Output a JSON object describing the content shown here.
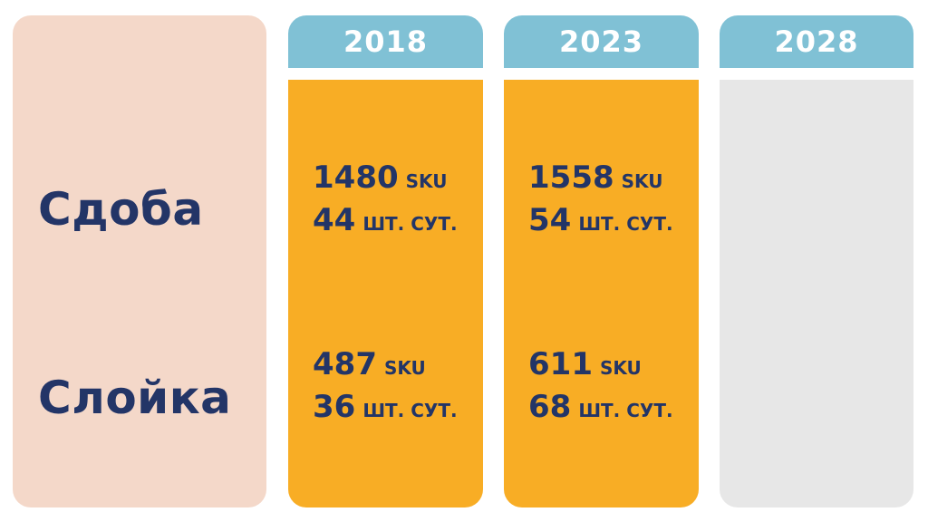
{
  "rows": [
    {
      "label": "Сдоба"
    },
    {
      "label": "Слойка"
    }
  ],
  "columns": [
    {
      "year": "2018",
      "cells": [
        {
          "sku": "1480",
          "sku_unit": "SKU",
          "daily": "44",
          "daily_unit": "ШТ. СУТ."
        },
        {
          "sku": "487",
          "sku_unit": "SKU",
          "daily": "36",
          "daily_unit": "ШТ. СУТ."
        }
      ]
    },
    {
      "year": "2023",
      "cells": [
        {
          "sku": "1558",
          "sku_unit": "SKU",
          "daily": "54",
          "daily_unit": "ШТ. СУТ."
        },
        {
          "sku": "611",
          "sku_unit": "SKU",
          "daily": "68",
          "daily_unit": "ШТ. СУТ."
        }
      ]
    },
    {
      "year": "2028",
      "cells": []
    }
  ],
  "colors": {
    "label_panel": "#f4d8c9",
    "header": "#80c1d5",
    "filled_body": "#f8ad25",
    "empty_body": "#e7e7e7",
    "text_dark": "#233567"
  }
}
